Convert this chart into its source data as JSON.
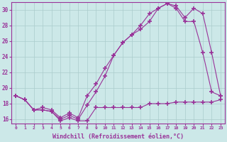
{
  "xlabel": "Windchill (Refroidissement éolien,°C)",
  "background_color": "#cce8e8",
  "grid_color": "#aacccc",
  "line_color": "#993399",
  "xlim": [
    -0.5,
    23.5
  ],
  "ylim": [
    15.5,
    31.0
  ],
  "xticks": [
    0,
    1,
    2,
    3,
    4,
    5,
    6,
    7,
    8,
    9,
    10,
    11,
    12,
    13,
    14,
    15,
    16,
    17,
    18,
    19,
    20,
    21,
    22,
    23
  ],
  "yticks": [
    16,
    18,
    20,
    22,
    24,
    26,
    28,
    30
  ],
  "series1_windchill": {
    "x": [
      0,
      1,
      2,
      3,
      4,
      5,
      6,
      7,
      8,
      9,
      10,
      11,
      12,
      13,
      14,
      15,
      16,
      17,
      18,
      19,
      20,
      21,
      22,
      23
    ],
    "y": [
      19.0,
      18.5,
      17.2,
      17.2,
      17.0,
      15.8,
      16.2,
      15.8,
      15.8,
      17.5,
      17.5,
      17.5,
      17.5,
      17.5,
      17.5,
      18.0,
      18.0,
      18.0,
      18.2,
      18.2,
      18.2,
      18.2,
      18.2,
      18.5
    ]
  },
  "series2_temp": {
    "x": [
      0,
      1,
      2,
      3,
      4,
      5,
      6,
      7,
      8,
      9,
      10,
      11,
      12,
      13,
      14,
      15,
      16,
      17,
      18,
      19,
      20,
      21,
      22,
      23
    ],
    "y": [
      19.0,
      18.5,
      17.2,
      17.2,
      17.0,
      16.0,
      16.5,
      16.0,
      17.8,
      19.5,
      21.5,
      24.2,
      25.8,
      26.8,
      27.5,
      28.5,
      30.2,
      30.8,
      30.5,
      29.0,
      30.2,
      29.5,
      24.5,
      19.0
    ]
  },
  "series3_temp2": {
    "x": [
      0,
      1,
      2,
      3,
      4,
      5,
      6,
      7,
      8,
      9,
      10,
      11,
      12,
      13,
      14,
      15,
      16,
      17,
      18,
      19,
      20,
      21,
      22,
      23
    ],
    "y": [
      19.0,
      18.5,
      17.2,
      17.5,
      17.2,
      16.2,
      16.8,
      16.2,
      19.0,
      20.5,
      22.5,
      24.2,
      25.8,
      26.8,
      28.0,
      29.5,
      30.2,
      30.8,
      30.2,
      28.5,
      28.5,
      24.5,
      19.5,
      19.0
    ]
  }
}
